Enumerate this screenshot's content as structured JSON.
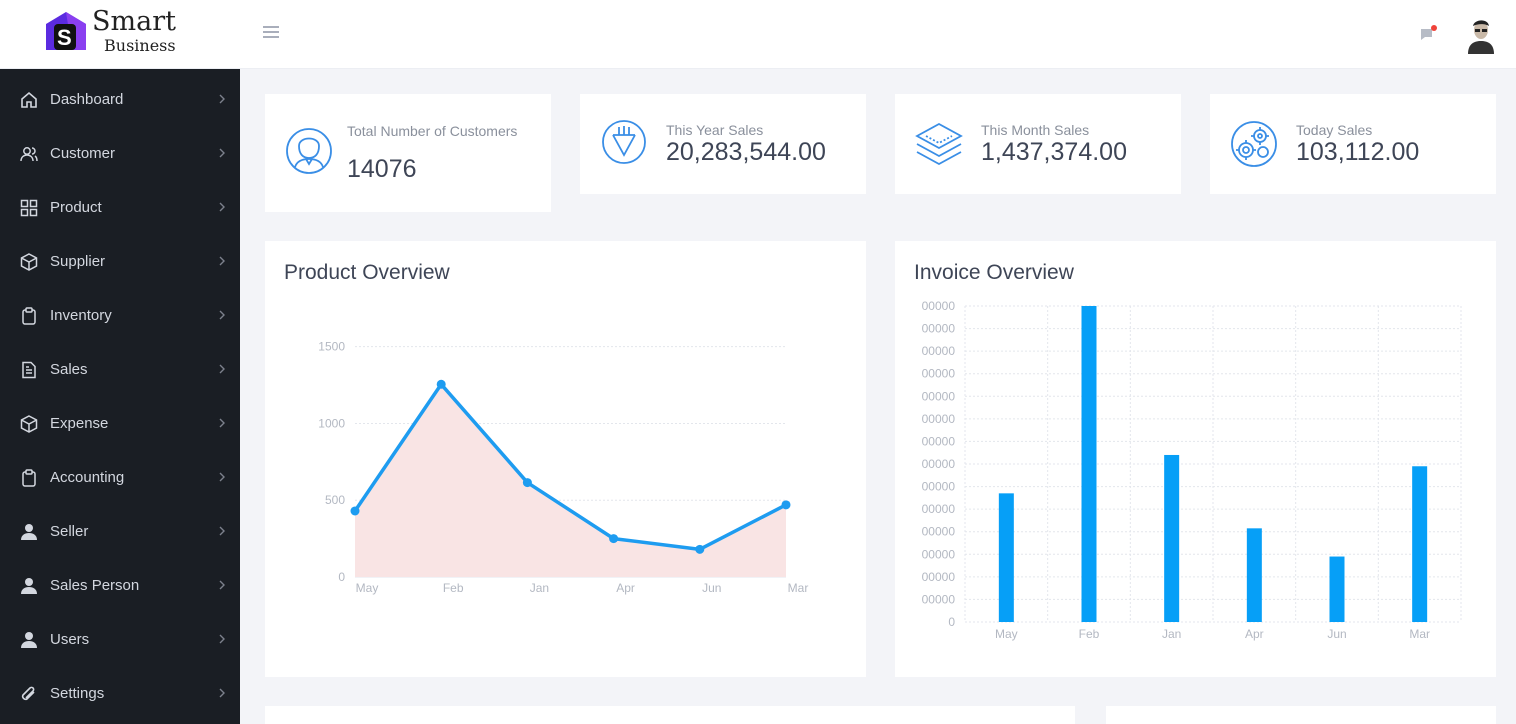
{
  "brand": {
    "name_line1": "Smart",
    "name_line2": "Business",
    "accent": "#5b2be0"
  },
  "header": {
    "menu_icon": "hamburger-icon",
    "chat_icon": "chat-icon",
    "avatar": "user-avatar"
  },
  "sidebar": {
    "items": [
      {
        "label": "Dashboard",
        "icon": "home-icon"
      },
      {
        "label": "Customer",
        "icon": "users-icon"
      },
      {
        "label": "Product",
        "icon": "grid-icon"
      },
      {
        "label": "Supplier",
        "icon": "box-icon"
      },
      {
        "label": "Inventory",
        "icon": "clipboard-icon"
      },
      {
        "label": "Sales",
        "icon": "document-icon"
      },
      {
        "label": "Expense",
        "icon": "box-icon"
      },
      {
        "label": "Accounting",
        "icon": "clipboard-icon"
      },
      {
        "label": "Seller",
        "icon": "user-icon"
      },
      {
        "label": "Sales Person",
        "icon": "user-icon"
      },
      {
        "label": "Users",
        "icon": "user-icon"
      },
      {
        "label": "Settings",
        "icon": "paperclip-icon"
      }
    ]
  },
  "stats": [
    {
      "label": "Total Number of Customers",
      "value": "14076",
      "icon": "customer-icon"
    },
    {
      "label": "This Year Sales",
      "value": "20,283,544.00",
      "icon": "pencil-badge-icon"
    },
    {
      "label": "This Month Sales",
      "value": "1,437,374.00",
      "icon": "layers-icon"
    },
    {
      "label": "Today Sales",
      "value": "103,112.00",
      "icon": "gears-icon"
    }
  ],
  "product_overview": {
    "title": "Product Overview"
  },
  "invoice_overview": {
    "title": "Invoice Overview"
  },
  "colors": {
    "line": "#1e9cf0",
    "area": "#f9e4e4",
    "bar": "#069ff7",
    "sidebar_bg": "#1a1e24"
  },
  "chart_data": [
    {
      "type": "area",
      "title": "Product Overview",
      "categories": [
        "May",
        "Feb",
        "Jan",
        "Apr",
        "Jun",
        "Mar"
      ],
      "values": [
        430,
        1255,
        615,
        250,
        180,
        470
      ],
      "yticks": [
        "0",
        "500",
        "1000",
        "1500"
      ],
      "ylim": [
        0,
        1550
      ],
      "grid": true
    },
    {
      "type": "bar",
      "title": "Invoice Overview",
      "categories": [
        "May",
        "Feb",
        "Jan",
        "Apr",
        "Jun",
        "Mar"
      ],
      "values": [
        5.7,
        14.0,
        7.4,
        4.15,
        2.9,
        6.9
      ],
      "yticks": [
        "0",
        "00000",
        "00000",
        "00000",
        "00000",
        "00000",
        "00000",
        "00000",
        "00000",
        "00000",
        "00000",
        "00000",
        "00000",
        "00000",
        "00000"
      ],
      "ylim": [
        0,
        14
      ],
      "grid": true
    }
  ]
}
